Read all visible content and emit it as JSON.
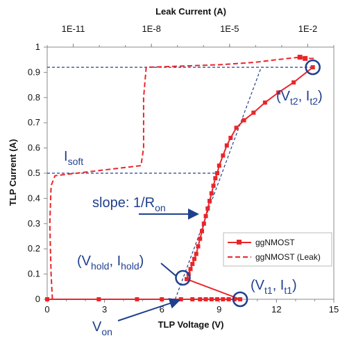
{
  "chart_data": {
    "type": "line",
    "xlabel": "TLP Voltage (V)",
    "ylabel": "TLP Current (A)",
    "x2label": "Leak Current (A)",
    "xlim": [
      0,
      15
    ],
    "ylim": [
      0,
      1
    ],
    "x2lim_exponent": [
      -12,
      -1
    ],
    "x_ticks": [
      "0",
      "3",
      "6",
      "9",
      "12",
      "15"
    ],
    "y_ticks": [
      "0",
      "0.1",
      "0.2",
      "0.3",
      "0.4",
      "0.5",
      "0.6",
      "0.7",
      "0.8",
      "0.9",
      "1"
    ],
    "x2_ticks": [
      {
        "label": "1E-11",
        "exponent": -11
      },
      {
        "label": "1E-8",
        "exponent": -8
      },
      {
        "label": "1E-5",
        "exponent": -5
      },
      {
        "label": "1E-2",
        "exponent": -2
      }
    ],
    "grid": false,
    "legend_position": "lower-right",
    "series": [
      {
        "name": "ggNMOST",
        "color": "#e8262a",
        "style": "solid-square",
        "x": [
          0,
          2.7,
          4.7,
          6.0,
          7.0,
          7.6,
          8.0,
          8.3,
          8.6,
          8.9,
          9.2,
          9.5,
          9.8,
          10.1,
          7.3,
          7.4,
          7.5,
          7.6,
          7.7,
          7.8,
          7.9,
          8.0,
          8.1,
          8.2,
          8.3,
          8.4,
          8.5,
          8.6,
          8.7,
          8.8,
          8.9,
          9.0,
          9.2,
          9.4,
          9.6,
          9.9,
          10.3,
          10.8,
          11.4,
          12.1,
          12.9,
          13.9
        ],
        "y": [
          0,
          0,
          0,
          0,
          0,
          0,
          0,
          0,
          0,
          0,
          0,
          0,
          0,
          0,
          0.08,
          0.1,
          0.12,
          0.14,
          0.16,
          0.18,
          0.21,
          0.24,
          0.27,
          0.3,
          0.33,
          0.36,
          0.39,
          0.42,
          0.45,
          0.48,
          0.5,
          0.53,
          0.57,
          0.61,
          0.64,
          0.68,
          0.71,
          0.74,
          0.78,
          0.82,
          0.86,
          0.92
        ]
      },
      {
        "name": "ggNMOST (Leak)",
        "color": "#e8262a",
        "style": "dashed",
        "leak_exponent": [
          -11.8,
          -11.85,
          -11.9,
          -11.85,
          -11.7,
          -8.4,
          -8.3,
          -8.3,
          -8.2,
          -5.4,
          -4.0,
          -3.2,
          -2.3,
          -2.1,
          -1.7
        ],
        "y": [
          0,
          0.1,
          0.3,
          0.45,
          0.49,
          0.53,
          0.6,
          0.8,
          0.92,
          0.93,
          0.94,
          0.95,
          0.96,
          0.955,
          0.955
        ]
      }
    ],
    "guides": {
      "slope_line": [
        [
          6.7,
          0.0
        ],
        [
          11.2,
          0.92
        ]
      ],
      "vertical_dropline_x": 6.7,
      "hline_soft_y": 0.5,
      "hline_soft_xmax": 9.0,
      "hline_top_y": 0.92,
      "hline_top_xmax": 13.9
    },
    "annotations": {
      "isoft_main": "I",
      "isoft_sub": "soft",
      "slope_main": "slope: 1/R",
      "slope_sub": "on",
      "vhold_main1": "(V",
      "vhold_sub1": "hold",
      "vhold_main2": ", I",
      "vhold_sub2": "hold",
      "vhold_main3": ")",
      "vt1_main1": "(V",
      "vt1_sub1": "t1",
      "vt1_main2": ", I",
      "vt1_sub2": "t1",
      "vt1_main3": ")",
      "vt2_main1": "(V",
      "vt2_sub1": "t2",
      "vt2_main2": ", I",
      "vt2_sub2": "t2",
      "vt2_main3": ")",
      "von_main": "V",
      "von_sub": "on"
    },
    "circles": [
      {
        "name": "hold-point",
        "x": 7.1,
        "y": 0.085
      },
      {
        "name": "t1-point",
        "x": 10.1,
        "y": 0.0
      },
      {
        "name": "t2-point",
        "x": 13.9,
        "y": 0.92
      }
    ],
    "annotation_color": "#1f3f8f"
  }
}
